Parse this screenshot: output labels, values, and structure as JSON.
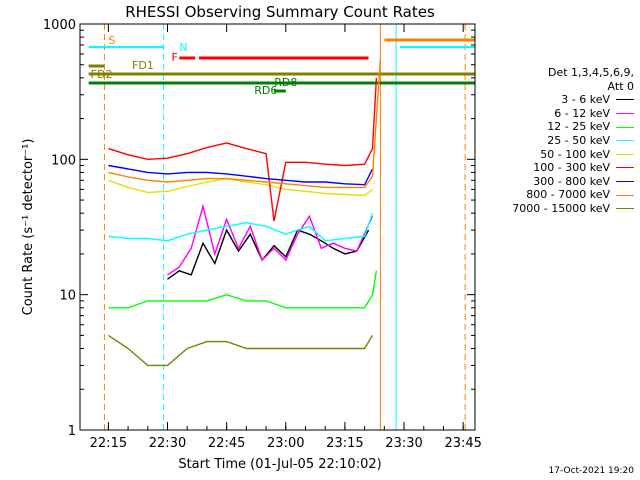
{
  "chart_data": {
    "type": "line",
    "title": "RHESSI Observing Summary Count Rates",
    "xlabel": "Start Time (01-Jul-05 22:10:02)",
    "ylabel": "Count Rate (s⁻¹ detector⁻¹)",
    "yscale": "log",
    "ylim": [
      1,
      1000
    ],
    "yticks": [
      "1",
      "10",
      "100",
      "1000"
    ],
    "xlim_minutes": [
      22.13,
      23.8
    ],
    "xticks": [
      "22:15",
      "22:30",
      "22:45",
      "23:00",
      "23:15",
      "23:30",
      "23:45"
    ],
    "legend_header": [
      "Det 1,3,4,5,6,9,",
      "Att 0"
    ],
    "legend_position": "right",
    "series": [
      {
        "name": "3 - 6 keV",
        "color": "#000000",
        "x": [
          "22:30",
          "22:33",
          "22:36",
          "22:39",
          "22:42",
          "22:45",
          "22:48",
          "22:51",
          "22:54",
          "22:57",
          "23:00",
          "23:03",
          "23:06",
          "23:09",
          "23:12",
          "23:15",
          "23:18",
          "23:21"
        ],
        "y": [
          13,
          15,
          14,
          24,
          17,
          30,
          21,
          28,
          18,
          23,
          19,
          30,
          28,
          25,
          22,
          20,
          21,
          30
        ]
      },
      {
        "name": "6 - 12 keV",
        "color": "#ff00ff",
        "x": [
          "22:30",
          "22:33",
          "22:36",
          "22:39",
          "22:42",
          "22:45",
          "22:48",
          "22:51",
          "22:54",
          "22:57",
          "23:00",
          "23:03",
          "23:06",
          "23:09",
          "23:12",
          "23:15",
          "23:18",
          "23:21",
          "23:22"
        ],
        "y": [
          14,
          16,
          22,
          45,
          20,
          36,
          22,
          32,
          18,
          22,
          18,
          28,
          38,
          22,
          24,
          22,
          21,
          33,
          38
        ]
      },
      {
        "name": "12 - 25 keV",
        "color": "#00ff00",
        "x": [
          "22:15",
          "22:20",
          "22:25",
          "22:30",
          "22:35",
          "22:40",
          "22:45",
          "22:50",
          "22:55",
          "23:00",
          "23:05",
          "23:10",
          "23:15",
          "23:20",
          "23:22",
          "23:23"
        ],
        "y": [
          8,
          8,
          9,
          9,
          9,
          9,
          10,
          9,
          9,
          8,
          8,
          8,
          8,
          8,
          10,
          15
        ]
      },
      {
        "name": "25 - 50 keV",
        "color": "#00ffff",
        "x": [
          "22:15",
          "22:20",
          "22:25",
          "22:30",
          "22:35",
          "22:40",
          "22:45",
          "22:50",
          "22:55",
          "23:00",
          "23:03",
          "23:06",
          "23:10",
          "23:15",
          "23:20",
          "23:22"
        ],
        "y": [
          27,
          26,
          26,
          25,
          28,
          30,
          32,
          34,
          32,
          28,
          30,
          32,
          25,
          26,
          27,
          40
        ]
      },
      {
        "name": "50 - 100 keV",
        "color": "#e0e000",
        "x": [
          "22:15",
          "22:20",
          "22:25",
          "22:30",
          "22:35",
          "22:40",
          "22:45",
          "22:50",
          "22:55",
          "23:00",
          "23:05",
          "23:10",
          "23:15",
          "23:20",
          "23:22"
        ],
        "y": [
          70,
          62,
          57,
          58,
          63,
          68,
          72,
          68,
          65,
          60,
          58,
          56,
          55,
          54,
          60
        ]
      },
      {
        "name": "100 - 300 keV",
        "color": "#ff0000",
        "x": [
          "22:15",
          "22:20",
          "22:25",
          "22:30",
          "22:35",
          "22:40",
          "22:45",
          "22:50",
          "22:55",
          "22:57",
          "23:00",
          "23:05",
          "23:10",
          "23:15",
          "23:20",
          "23:22",
          "23:23"
        ],
        "y": [
          120,
          108,
          100,
          102,
          110,
          122,
          132,
          120,
          110,
          35,
          95,
          95,
          92,
          90,
          92,
          120,
          400
        ]
      },
      {
        "name": "300 - 800 keV",
        "color": "#0000ff",
        "x": [
          "22:15",
          "22:20",
          "22:25",
          "22:30",
          "22:35",
          "22:40",
          "22:45",
          "22:50",
          "22:55",
          "23:00",
          "23:05",
          "23:10",
          "23:15",
          "23:20",
          "23:22"
        ],
        "y": [
          90,
          85,
          80,
          78,
          80,
          80,
          78,
          75,
          72,
          70,
          68,
          68,
          66,
          65,
          85
        ]
      },
      {
        "name": "800 - 7000 keV",
        "color": "#ff8000",
        "x": [
          "22:15",
          "22:20",
          "22:25",
          "22:30",
          "22:35",
          "22:40",
          "22:45",
          "22:50",
          "22:55",
          "23:00",
          "23:05",
          "23:10",
          "23:15",
          "23:20",
          "23:22",
          "23:23",
          "23:24"
        ],
        "y": [
          80,
          74,
          70,
          68,
          70,
          72,
          72,
          70,
          68,
          66,
          64,
          62,
          62,
          62,
          75,
          200,
          550
        ]
      },
      {
        "name": "7000 - 15000 keV",
        "color": "#808000",
        "x": [
          "22:15",
          "22:20",
          "22:25",
          "22:30",
          "22:35",
          "22:40",
          "22:45",
          "22:50",
          "22:55",
          "23:00",
          "23:05",
          "23:10",
          "23:15",
          "23:20",
          "23:22"
        ],
        "y": [
          5,
          4,
          3,
          3,
          4,
          4.5,
          4.5,
          4,
          4,
          4,
          4,
          4,
          4,
          4,
          5
        ]
      }
    ],
    "annotations": [
      {
        "text": "S",
        "color": "#ff8000"
      },
      {
        "text": "N",
        "color": "#00ffff"
      },
      {
        "text": "F",
        "color": "#ff0000"
      },
      {
        "text": "FD1",
        "color": "#808000"
      },
      {
        "text": "FD2",
        "color": "#808000"
      },
      {
        "text": "RD6",
        "color": "#008000"
      },
      {
        "text": "RD8",
        "color": "#008000"
      }
    ],
    "timestamp": "17-Oct-2021 19:20"
  }
}
